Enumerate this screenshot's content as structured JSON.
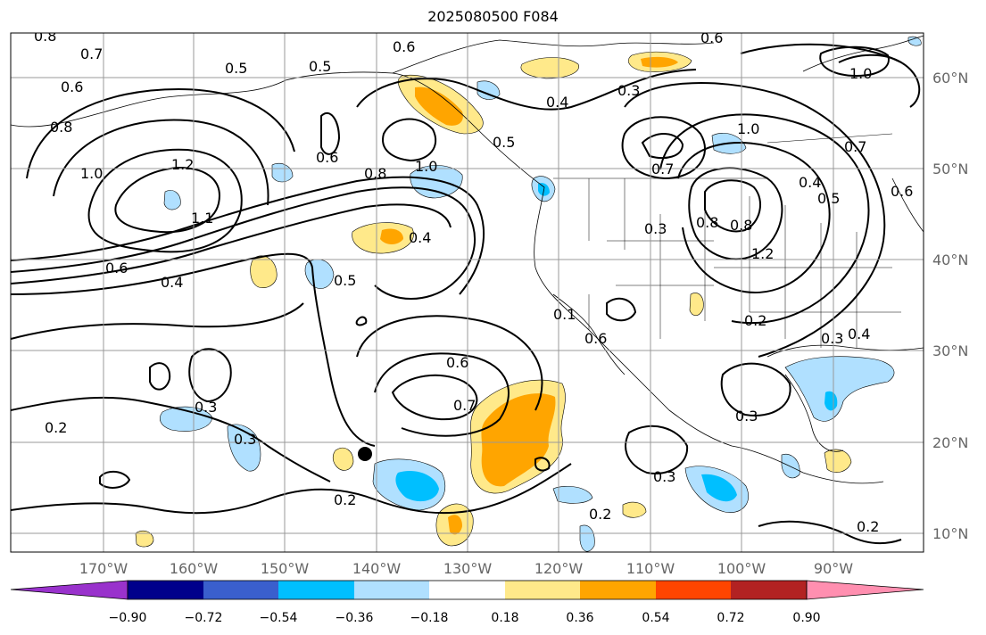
{
  "title": "2025080500 F084",
  "axes": {
    "lon_ticks": [
      "170°W",
      "160°W",
      "150°W",
      "140°W",
      "130°W",
      "120°W",
      "110°W",
      "100°W",
      "90°W"
    ],
    "lat_ticks": [
      "60°N",
      "50°N",
      "40°N",
      "30°N",
      "20°N",
      "10°N"
    ]
  },
  "contour_labels": [
    "0.8",
    "0.7",
    "0.6",
    "0.5",
    "0.5",
    "0.6",
    "0.6",
    "0.3",
    "0.4",
    "0.8",
    "1.0",
    "1.2",
    "0.6",
    "0.8",
    "1.0",
    "1.1",
    "0.6",
    "0.4",
    "0.4",
    "0.5",
    "0.7",
    "0.8",
    "0.3",
    "0.8",
    "1.2",
    "1.0",
    "0.5",
    "0.4",
    "0.5",
    "0.6",
    "1.0",
    "0.7",
    "0.6",
    "0.2",
    "0.3",
    "0.4",
    "0.6",
    "0.7",
    "0.3",
    "0.3",
    "0.3",
    "0.2",
    "0.2",
    "0.3",
    "0.2",
    "0.2",
    "0.1"
  ],
  "colorbar": {
    "ticks": [
      "−0.90",
      "−0.72",
      "−0.54",
      "−0.36",
      "−0.18",
      "0.18",
      "0.36",
      "0.54",
      "0.72",
      "0.90"
    ],
    "colors": [
      "#9932cc",
      "#00008b",
      "#3a5fcd",
      "#00bfff",
      "#b0e0ff",
      "#ffffff",
      "#ffe98a",
      "#ffa500",
      "#ff4500",
      "#b22222",
      "#ff8fb0"
    ]
  },
  "colors": {
    "light_blue": "#b0e0ff",
    "blue": "#00bfff",
    "yellow": "#ffe98a",
    "orange": "#ffa500",
    "contour": "#000000",
    "grid": "#999999"
  }
}
